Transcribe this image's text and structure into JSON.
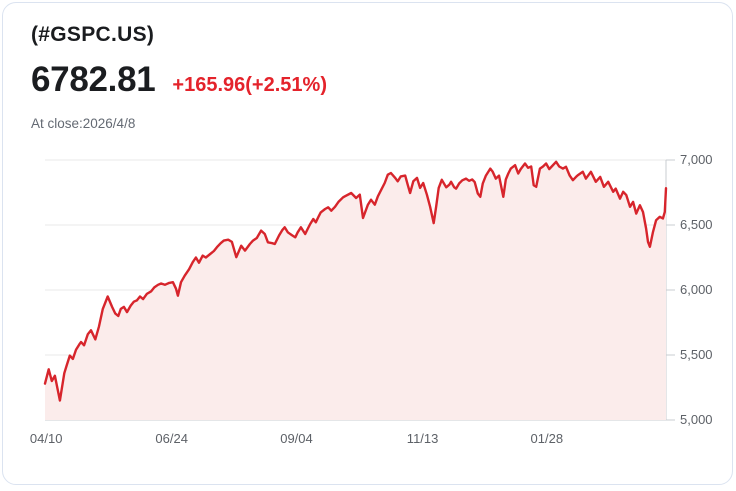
{
  "header": {
    "symbol": "(#GSPC.US)",
    "price": "6782.81",
    "change": "+165.96(+2.51%)",
    "as_of": "At close:2026/4/8"
  },
  "colors": {
    "line": "#d7252c",
    "area_fill": "#fbeceb",
    "change_text": "#e4232b",
    "grid": "#e9e9e9",
    "axis": "#c9ccd1",
    "axis_label": "#5d6167",
    "card_border": "#dbe3f0"
  },
  "chart_data": {
    "type": "area",
    "last_close": 6782.81,
    "y_axis": {
      "min": 5000,
      "max": 7000,
      "grid": true,
      "ticks": [
        {
          "label": "7,000",
          "value": 7000
        },
        {
          "label": "6,500",
          "value": 6500
        },
        {
          "label": "6,000",
          "value": 6000
        },
        {
          "label": "5,500",
          "value": 5500
        },
        {
          "label": "5,000",
          "value": 5000
        }
      ]
    },
    "x_axis": {
      "ticks": [
        {
          "label": "04/10",
          "pos": 0.002
        },
        {
          "label": "06/24",
          "pos": 0.204
        },
        {
          "label": "09/04",
          "pos": 0.405
        },
        {
          "label": "11/13",
          "pos": 0.608
        },
        {
          "label": "01/28",
          "pos": 0.808
        }
      ]
    },
    "series": [
      {
        "name": "#GSPC.US",
        "points": [
          [
            0,
            5280
          ],
          [
            0.006,
            5390
          ],
          [
            0.011,
            5300
          ],
          [
            0.016,
            5340
          ],
          [
            0.024,
            5150
          ],
          [
            0.031,
            5360
          ],
          [
            0.035,
            5420
          ],
          [
            0.04,
            5495
          ],
          [
            0.045,
            5470
          ],
          [
            0.05,
            5540
          ],
          [
            0.055,
            5580
          ],
          [
            0.058,
            5600
          ],
          [
            0.063,
            5575
          ],
          [
            0.069,
            5660
          ],
          [
            0.074,
            5690
          ],
          [
            0.081,
            5620
          ],
          [
            0.087,
            5720
          ],
          [
            0.093,
            5855
          ],
          [
            0.101,
            5950
          ],
          [
            0.108,
            5870
          ],
          [
            0.113,
            5820
          ],
          [
            0.118,
            5800
          ],
          [
            0.122,
            5855
          ],
          [
            0.127,
            5870
          ],
          [
            0.132,
            5830
          ],
          [
            0.138,
            5880
          ],
          [
            0.143,
            5910
          ],
          [
            0.148,
            5920
          ],
          [
            0.153,
            5950
          ],
          [
            0.158,
            5930
          ],
          [
            0.164,
            5970
          ],
          [
            0.171,
            5990
          ],
          [
            0.176,
            6020
          ],
          [
            0.182,
            6040
          ],
          [
            0.187,
            6050
          ],
          [
            0.193,
            6040
          ],
          [
            0.2,
            6055
          ],
          [
            0.206,
            6060
          ],
          [
            0.211,
            6010
          ],
          [
            0.214,
            5956
          ],
          [
            0.219,
            6060
          ],
          [
            0.225,
            6110
          ],
          [
            0.232,
            6160
          ],
          [
            0.238,
            6215
          ],
          [
            0.243,
            6250
          ],
          [
            0.248,
            6210
          ],
          [
            0.254,
            6265
          ],
          [
            0.259,
            6250
          ],
          [
            0.266,
            6277
          ],
          [
            0.272,
            6300
          ],
          [
            0.277,
            6330
          ],
          [
            0.283,
            6360
          ],
          [
            0.288,
            6380
          ],
          [
            0.295,
            6387
          ],
          [
            0.301,
            6370
          ],
          [
            0.308,
            6252
          ],
          [
            0.316,
            6341
          ],
          [
            0.322,
            6303
          ],
          [
            0.33,
            6354
          ],
          [
            0.335,
            6380
          ],
          [
            0.341,
            6400
          ],
          [
            0.348,
            6457
          ],
          [
            0.354,
            6431
          ],
          [
            0.359,
            6367
          ],
          [
            0.366,
            6360
          ],
          [
            0.37,
            6354
          ],
          [
            0.377,
            6420
          ],
          [
            0.382,
            6460
          ],
          [
            0.386,
            6482
          ],
          [
            0.391,
            6444
          ],
          [
            0.398,
            6420
          ],
          [
            0.403,
            6405
          ],
          [
            0.407,
            6444
          ],
          [
            0.412,
            6482
          ],
          [
            0.419,
            6431
          ],
          [
            0.423,
            6470
          ],
          [
            0.427,
            6508
          ],
          [
            0.432,
            6546
          ],
          [
            0.436,
            6521
          ],
          [
            0.441,
            6570
          ],
          [
            0.444,
            6597
          ],
          [
            0.451,
            6623
          ],
          [
            0.456,
            6636
          ],
          [
            0.461,
            6610
          ],
          [
            0.467,
            6640
          ],
          [
            0.473,
            6680
          ],
          [
            0.48,
            6713
          ],
          [
            0.483,
            6721
          ],
          [
            0.493,
            6746
          ],
          [
            0.501,
            6708
          ],
          [
            0.507,
            6733
          ],
          [
            0.512,
            6554
          ],
          [
            0.52,
            6656
          ],
          [
            0.525,
            6695
          ],
          [
            0.531,
            6656
          ],
          [
            0.536,
            6721
          ],
          [
            0.547,
            6823
          ],
          [
            0.552,
            6887
          ],
          [
            0.557,
            6900
          ],
          [
            0.564,
            6862
          ],
          [
            0.568,
            6836
          ],
          [
            0.573,
            6874
          ],
          [
            0.58,
            6880
          ],
          [
            0.584,
            6810
          ],
          [
            0.588,
            6746
          ],
          [
            0.593,
            6836
          ],
          [
            0.599,
            6862
          ],
          [
            0.604,
            6785
          ],
          [
            0.609,
            6823
          ],
          [
            0.615,
            6733
          ],
          [
            0.62,
            6644
          ],
          [
            0.626,
            6515
          ],
          [
            0.63,
            6644
          ],
          [
            0.634,
            6785
          ],
          [
            0.639,
            6848
          ],
          [
            0.646,
            6790
          ],
          [
            0.651,
            6810
          ],
          [
            0.654,
            6832
          ],
          [
            0.659,
            6790
          ],
          [
            0.662,
            6780
          ],
          [
            0.667,
            6820
          ],
          [
            0.672,
            6844
          ],
          [
            0.678,
            6857
          ],
          [
            0.683,
            6840
          ],
          [
            0.688,
            6850
          ],
          [
            0.692,
            6830
          ],
          [
            0.697,
            6742
          ],
          [
            0.701,
            6717
          ],
          [
            0.705,
            6820
          ],
          [
            0.71,
            6880
          ],
          [
            0.717,
            6934
          ],
          [
            0.721,
            6910
          ],
          [
            0.726,
            6857
          ],
          [
            0.731,
            6880
          ],
          [
            0.738,
            6717
          ],
          [
            0.742,
            6850
          ],
          [
            0.746,
            6896
          ],
          [
            0.75,
            6934
          ],
          [
            0.757,
            6960
          ],
          [
            0.762,
            6896
          ],
          [
            0.766,
            6930
          ],
          [
            0.773,
            6973
          ],
          [
            0.778,
            6940
          ],
          [
            0.783,
            6950
          ],
          [
            0.787,
            6806
          ],
          [
            0.791,
            6794
          ],
          [
            0.797,
            6934
          ],
          [
            0.802,
            6950
          ],
          [
            0.807,
            6973
          ],
          [
            0.812,
            6930
          ],
          [
            0.816,
            6950
          ],
          [
            0.823,
            6986
          ],
          [
            0.828,
            6950
          ],
          [
            0.834,
            6934
          ],
          [
            0.839,
            6948
          ],
          [
            0.845,
            6880
          ],
          [
            0.85,
            6845
          ],
          [
            0.855,
            6870
          ],
          [
            0.858,
            6883
          ],
          [
            0.866,
            6909
          ],
          [
            0.871,
            6857
          ],
          [
            0.879,
            6909
          ],
          [
            0.887,
            6832
          ],
          [
            0.894,
            6870
          ],
          [
            0.9,
            6794
          ],
          [
            0.907,
            6832
          ],
          [
            0.915,
            6755
          ],
          [
            0.919,
            6780
          ],
          [
            0.926,
            6703
          ],
          [
            0.931,
            6755
          ],
          [
            0.936,
            6730
          ],
          [
            0.942,
            6640
          ],
          [
            0.947,
            6678
          ],
          [
            0.952,
            6588
          ],
          [
            0.958,
            6652
          ],
          [
            0.963,
            6600
          ],
          [
            0.968,
            6473
          ],
          [
            0.971,
            6370
          ],
          [
            0.974,
            6332
          ],
          [
            0.979,
            6447
          ],
          [
            0.984,
            6537
          ],
          [
            0.99,
            6563
          ],
          [
            0.995,
            6550
          ],
          [
            0.998,
            6601
          ],
          [
            1,
            6783
          ]
        ]
      }
    ]
  }
}
